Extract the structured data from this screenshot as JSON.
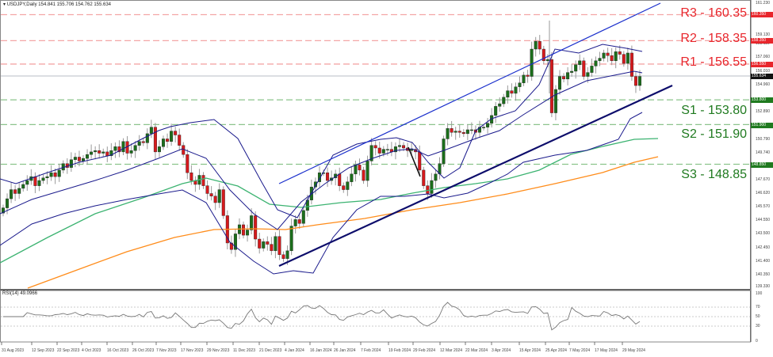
{
  "header": {
    "title": "USDJPY,Daily",
    "ohlc": "154.841 155.706 154.762 155.634"
  },
  "rsi": {
    "title": "RSI(14) 49.0966",
    "levels": [
      70,
      50,
      30
    ],
    "axis": [
      "100",
      "70",
      "50",
      "30",
      "0"
    ]
  },
  "levels": {
    "r3": {
      "label": "R3 - 160.35",
      "value": 160.35,
      "badge": "160.350"
    },
    "r2": {
      "label": "R2 - 158.35",
      "value": 158.35,
      "badge": "158.350"
    },
    "r1": {
      "label": "R1 - 156.55",
      "value": 156.55,
      "badge": "156.550"
    },
    "s1": {
      "label": "S1 - 153.80",
      "value": 153.8,
      "badge": "153.800"
    },
    "s2": {
      "label": "S2 - 151.90",
      "value": 151.9,
      "badge": "151.900"
    },
    "s3": {
      "label": "S3 - 148.85",
      "value": 148.85,
      "badge": "148.850"
    },
    "current": {
      "value": 155.634,
      "badge": "155.634"
    }
  },
  "colors": {
    "resistance": "#e8262c",
    "resistance_line": "#f4a6a6",
    "support": "#1f7a1f",
    "support_line": "#8cc48c",
    "bull": "#1b6e1b",
    "bear": "#d7191c",
    "bollinger": "#1a1a8c",
    "ma_green": "#3cb371",
    "ma_orange": "#ff8c1a",
    "trendline": "#0d0d6b",
    "channel": "#1a2fcc",
    "rsi_line": "#777777"
  },
  "axis": {
    "y_ticks": [
      "161.230",
      "159.130",
      "158.110",
      "157.060",
      "156.010",
      "154.960",
      "152.890",
      "150.790",
      "149.740",
      "147.670",
      "146.620",
      "145.570",
      "144.550",
      "143.500",
      "142.450",
      "141.400",
      "140.350",
      "139.330"
    ],
    "x_ticks": [
      "31 Aug 2023",
      "12 Sep 2023",
      "22 Sep 2023",
      "4 Oct 2023",
      "16 Oct 2023",
      "26 Oct 2023",
      "7 Nov 2023",
      "17 Nov 2023",
      "29 Nov 2023",
      "11 Dec 2023",
      "21 Dec 2023",
      "4 Jan 2024",
      "16 Jan 2024",
      "26 Jan 2024",
      "7 Feb 2024",
      "19 Feb 2024",
      "29 Feb 2024",
      "12 Mar 2024",
      "22 Mar 2024",
      "3 Apr 2024",
      "15 Apr 2024",
      "25 Apr 2024",
      "7 May 2024",
      "17 May 2024",
      "29 May 2024"
    ]
  },
  "chart_data": {
    "type": "candlestick",
    "title": "USDJPY, Daily",
    "subtitle": "O 154.841 H 155.706 L 154.762 C 155.634",
    "xlabel": "",
    "ylabel": "",
    "ylim": [
      139.33,
      161.23
    ],
    "grid": false,
    "indicators": [
      "Bollinger Bands",
      "MA (green, ~100)",
      "MA (orange, ~200)",
      "RSI(14)"
    ],
    "x_ticks": [
      "31 Aug 2023",
      "12 Sep 2023",
      "22 Sep 2023",
      "4 Oct 2023",
      "16 Oct 2023",
      "26 Oct 2023",
      "7 Nov 2023",
      "17 Nov 2023",
      "29 Nov 2023",
      "11 Dec 2023",
      "21 Dec 2023",
      "4 Jan 2024",
      "16 Jan 2024",
      "26 Jan 2024",
      "7 Feb 2024",
      "19 Feb 2024",
      "29 Feb 2024",
      "12 Mar 2024",
      "22 Mar 2024",
      "3 Apr 2024",
      "15 Apr 2024",
      "25 Apr 2024",
      "7 May 2024",
      "17 May 2024",
      "29 May 2024"
    ],
    "horizontal_levels": [
      {
        "name": "R3",
        "value": 160.35
      },
      {
        "name": "R2",
        "value": 158.35
      },
      {
        "name": "R1",
        "value": 156.55
      },
      {
        "name": "S1",
        "value": 153.8
      },
      {
        "name": "S2",
        "value": 151.9
      },
      {
        "name": "S3",
        "value": 148.85
      }
    ],
    "last_price": 155.634,
    "close_series": [
      145.5,
      146.2,
      146.9,
      146.6,
      147.0,
      147.3,
      147.6,
      147.9,
      147.2,
      147.6,
      147.8,
      147.9,
      148.2,
      147.9,
      148.4,
      148.9,
      148.6,
      149.2,
      149.4,
      149.1,
      149.3,
      149.6,
      149.8,
      149.9,
      149.7,
      149.8,
      149.5,
      149.9,
      150.2,
      149.8,
      150.6,
      149.7,
      149.9,
      150.3,
      150.6,
      150.5,
      151.2,
      151.7,
      149.8,
      150.2,
      150.8,
      150.6,
      151.4,
      151.1,
      150.3,
      149.6,
      148.2,
      147.6,
      147.3,
      148.0,
      147.2,
      146.6,
      146.4,
      145.9,
      146.9,
      144.9,
      142.8,
      142.3,
      143.5,
      144.2,
      143.4,
      143.8,
      144.9,
      143.1,
      142.4,
      142.9,
      142.7,
      142.2,
      143.3,
      141.9,
      141.6,
      142.2,
      144.1,
      144.6,
      144.3,
      145.3,
      146.1,
      147.1,
      147.5,
      148.2,
      148.2,
      147.6,
      147.8,
      148.1,
      147.2,
      146.9,
      147.5,
      148.1,
      148.8,
      148.4,
      147.6,
      149.1,
      150.3,
      150.1,
      149.7,
      150.0,
      150.0,
      149.8,
      150.2,
      150.3,
      150.1,
      149.9,
      150.0,
      149.8,
      148.4,
      147.2,
      146.6,
      147.6,
      148.1,
      148.9,
      150.8,
      151.6,
      151.3,
      151.4,
      151.3,
      151.2,
      151.5,
      151.5,
      151.3,
      151.7,
      151.7,
      152.0,
      152.6,
      153.3,
      153.5,
      154.0,
      154.5,
      154.3,
      154.8,
      155.1,
      155.7,
      155.6,
      157.7,
      158.3,
      157.7,
      156.8,
      156.9,
      152.8,
      154.6,
      155.6,
      155.4,
      155.9,
      156.0,
      156.5,
      156.8,
      155.6,
      155.9,
      156.4,
      156.8,
      157.0,
      157.4,
      157.2,
      156.8,
      157.5,
      157.3,
      156.6,
      157.4,
      155.6,
      154.9,
      155.6
    ]
  }
}
